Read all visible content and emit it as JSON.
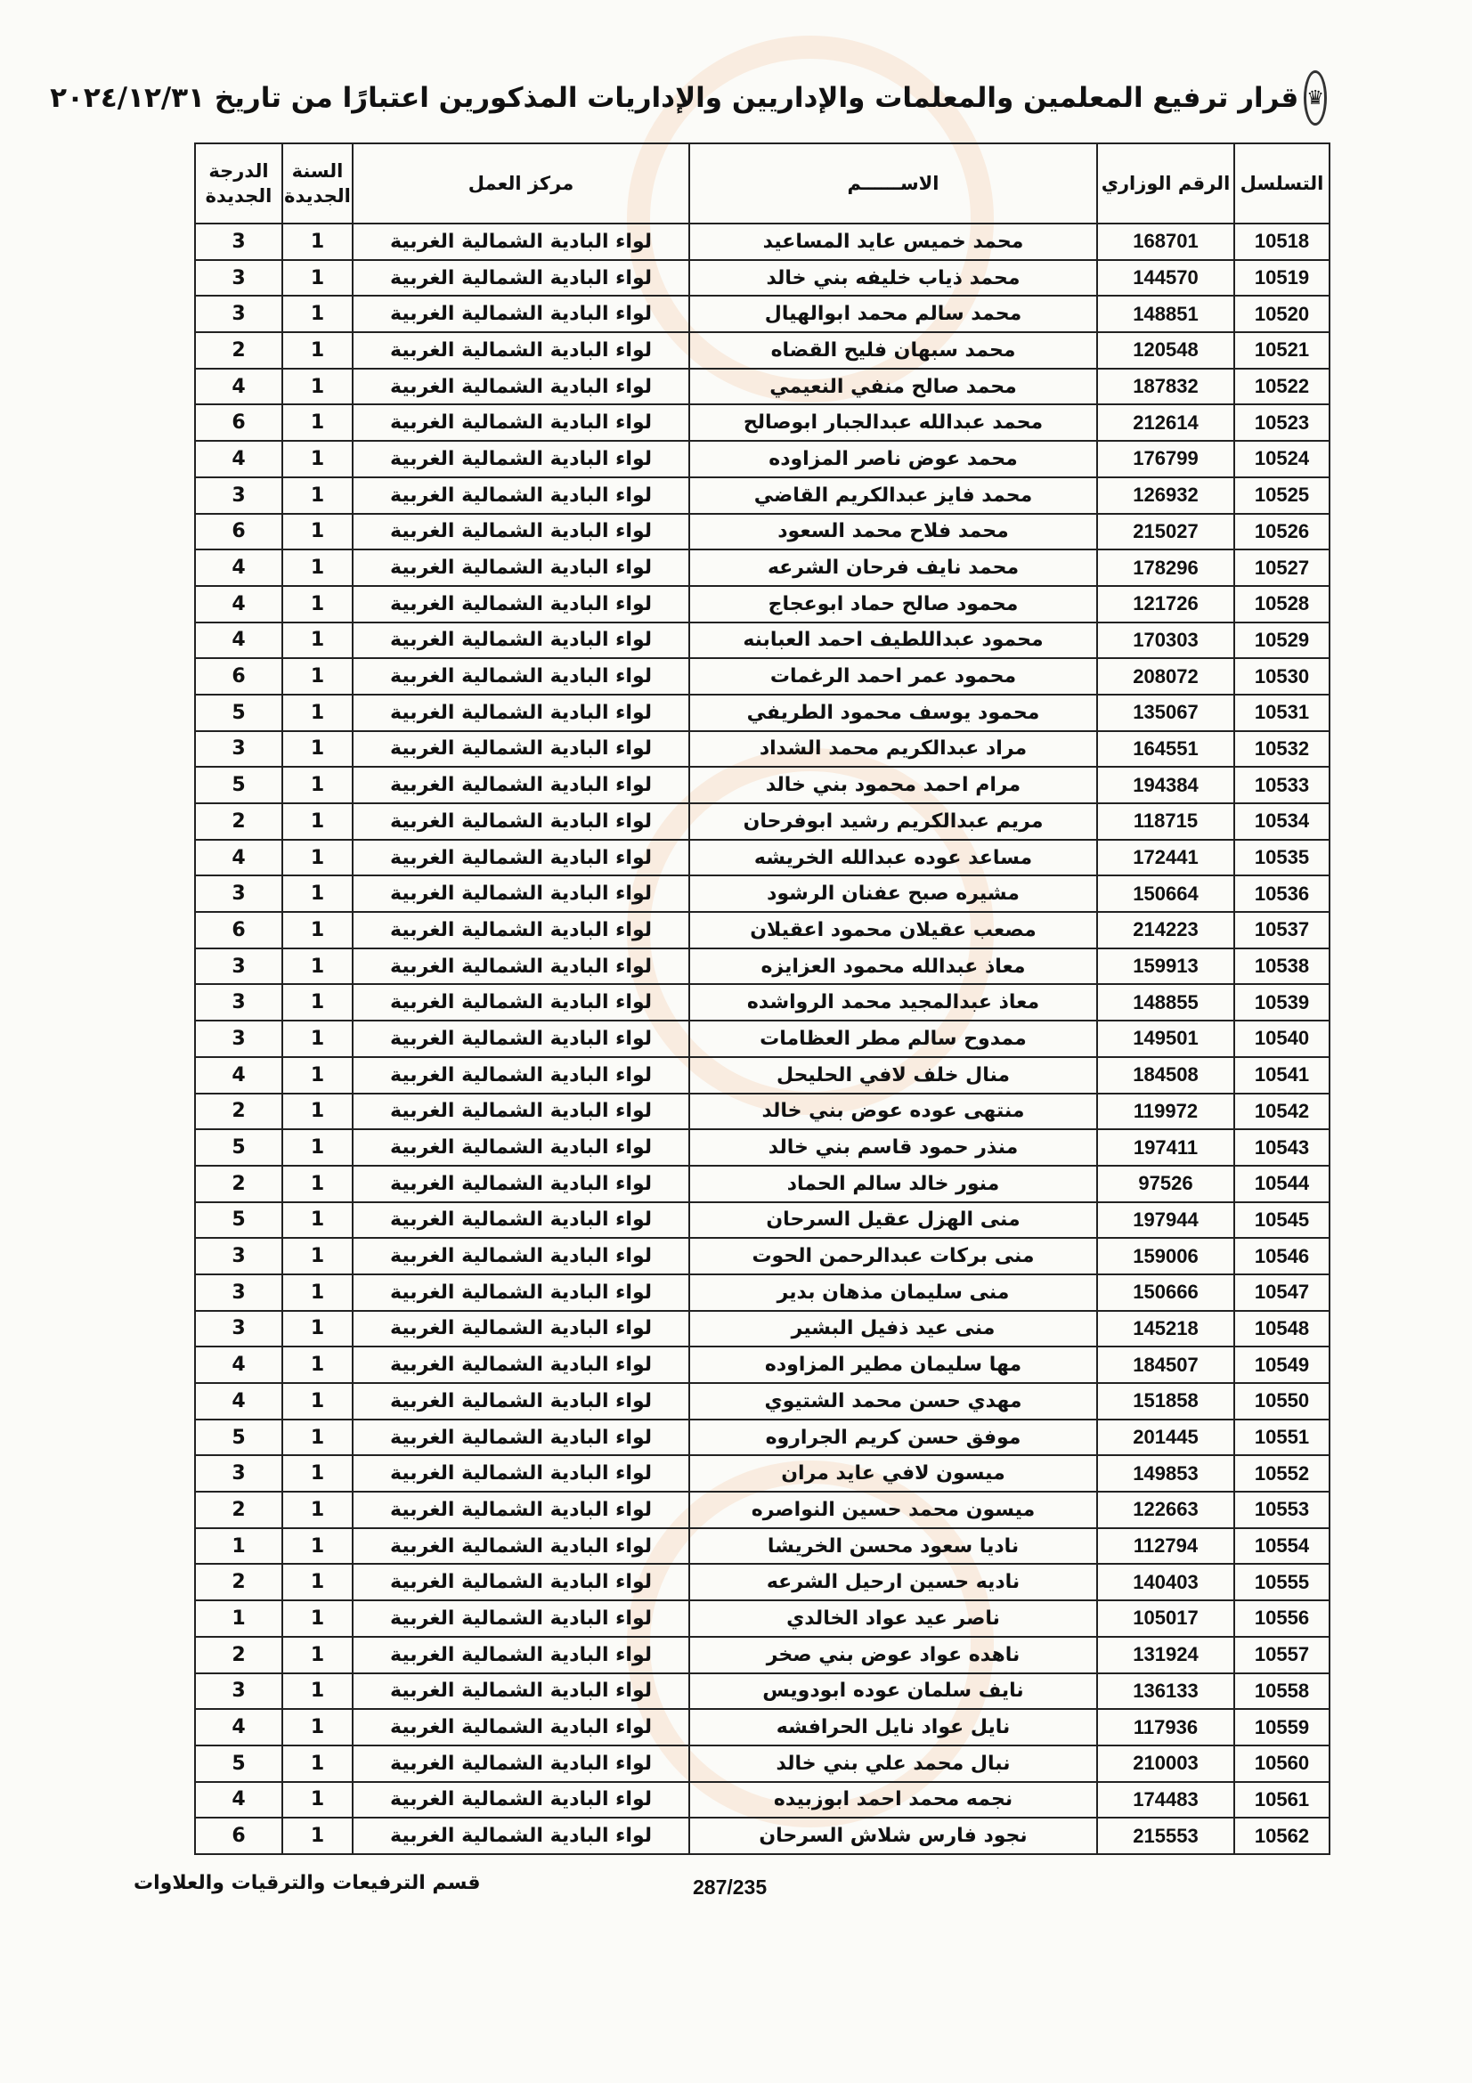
{
  "watermark": "مدار الساعة الإخبارية",
  "header": {
    "seal_icon": "jordan-ministry-seal",
    "title": "قرار ترفيع المعلمين والمعلمات والإداريين والإداريات المذكورين اعتبارًا من تاريخ ٢٠٢٤/١٢/٣١"
  },
  "table": {
    "columns": [
      "التسلسل",
      "الرقم الوزاري",
      "الاســــــم",
      "مركز العمل",
      "السنة الجديدة",
      "الدرجة الجديدة"
    ],
    "rows": [
      [
        "10518",
        "168701",
        "محمد خميس عايد المساعيد",
        "لواء البادية الشمالية الغربية",
        "1",
        "3"
      ],
      [
        "10519",
        "144570",
        "محمد ذياب خليفه بني خالد",
        "لواء البادية الشمالية الغربية",
        "1",
        "3"
      ],
      [
        "10520",
        "148851",
        "محمد سالم محمد ابوالهيال",
        "لواء البادية الشمالية الغربية",
        "1",
        "3"
      ],
      [
        "10521",
        "120548",
        "محمد سبهان فليح القضاه",
        "لواء البادية الشمالية الغربية",
        "1",
        "2"
      ],
      [
        "10522",
        "187832",
        "محمد صالح منفي النعيمي",
        "لواء البادية الشمالية الغربية",
        "1",
        "4"
      ],
      [
        "10523",
        "212614",
        "محمد عبدالله عبدالجبار ابوصالح",
        "لواء البادية الشمالية الغربية",
        "1",
        "6"
      ],
      [
        "10524",
        "176799",
        "محمد عوض ناصر المزاوده",
        "لواء البادية الشمالية الغربية",
        "1",
        "4"
      ],
      [
        "10525",
        "126932",
        "محمد فايز عبدالكريم القاضي",
        "لواء البادية الشمالية الغربية",
        "1",
        "3"
      ],
      [
        "10526",
        "215027",
        "محمد فلاح محمد السعود",
        "لواء البادية الشمالية الغربية",
        "1",
        "6"
      ],
      [
        "10527",
        "178296",
        "محمد نايف فرحان الشرعه",
        "لواء البادية الشمالية الغربية",
        "1",
        "4"
      ],
      [
        "10528",
        "121726",
        "محمود صالح حماد ابوعجاج",
        "لواء البادية الشمالية الغربية",
        "1",
        "4"
      ],
      [
        "10529",
        "170303",
        "محمود عبداللطيف احمد العبابنه",
        "لواء البادية الشمالية الغربية",
        "1",
        "4"
      ],
      [
        "10530",
        "208072",
        "محمود عمر احمد الرغمات",
        "لواء البادية الشمالية الغربية",
        "1",
        "6"
      ],
      [
        "10531",
        "135067",
        "محمود يوسف محمود الطريفي",
        "لواء البادية الشمالية الغربية",
        "1",
        "5"
      ],
      [
        "10532",
        "164551",
        "مراد عبدالكريم محمد الشداد",
        "لواء البادية الشمالية الغربية",
        "1",
        "3"
      ],
      [
        "10533",
        "194384",
        "مرام احمد محمود بني خالد",
        "لواء البادية الشمالية الغربية",
        "1",
        "5"
      ],
      [
        "10534",
        "118715",
        "مريم عبدالكريم رشيد ابوفرحان",
        "لواء البادية الشمالية الغربية",
        "1",
        "2"
      ],
      [
        "10535",
        "172441",
        "مساعد عوده عبدالله الخريشه",
        "لواء البادية الشمالية الغربية",
        "1",
        "4"
      ],
      [
        "10536",
        "150664",
        "مشيره صبح عفنان الرشود",
        "لواء البادية الشمالية الغربية",
        "1",
        "3"
      ],
      [
        "10537",
        "214223",
        "مصعب عقيلان محمود اعقيلان",
        "لواء البادية الشمالية الغربية",
        "1",
        "6"
      ],
      [
        "10538",
        "159913",
        "معاذ عبدالله محمود العزايزه",
        "لواء البادية الشمالية الغربية",
        "1",
        "3"
      ],
      [
        "10539",
        "148855",
        "معاذ عبدالمجيد محمد الرواشده",
        "لواء البادية الشمالية الغربية",
        "1",
        "3"
      ],
      [
        "10540",
        "149501",
        "ممدوح سالم مطر العظامات",
        "لواء البادية الشمالية الغربية",
        "1",
        "3"
      ],
      [
        "10541",
        "184508",
        "منال خلف لافي الحليحل",
        "لواء البادية الشمالية الغربية",
        "1",
        "4"
      ],
      [
        "10542",
        "119972",
        "منتهى عوده عوض بني خالد",
        "لواء البادية الشمالية الغربية",
        "1",
        "2"
      ],
      [
        "10543",
        "197411",
        "منذر حمود قاسم بني خالد",
        "لواء البادية الشمالية الغربية",
        "1",
        "5"
      ],
      [
        "10544",
        "97526",
        "منور خالد سالم الحماد",
        "لواء البادية الشمالية الغربية",
        "1",
        "2"
      ],
      [
        "10545",
        "197944",
        "منى الهزل عقيل السرحان",
        "لواء البادية الشمالية الغربية",
        "1",
        "5"
      ],
      [
        "10546",
        "159006",
        "منى بركات عبدالرحمن الحوت",
        "لواء البادية الشمالية الغربية",
        "1",
        "3"
      ],
      [
        "10547",
        "150666",
        "منى سليمان مذهان بدير",
        "لواء البادية الشمالية الغربية",
        "1",
        "3"
      ],
      [
        "10548",
        "145218",
        "منى عيد ذفيل البشير",
        "لواء البادية الشمالية الغربية",
        "1",
        "3"
      ],
      [
        "10549",
        "184507",
        "مها سليمان مطير المزاوده",
        "لواء البادية الشمالية الغربية",
        "1",
        "4"
      ],
      [
        "10550",
        "151858",
        "مهدي حسن محمد الشتيوي",
        "لواء البادية الشمالية الغربية",
        "1",
        "4"
      ],
      [
        "10551",
        "201445",
        "موفق حسن كريم الجراروه",
        "لواء البادية الشمالية الغربية",
        "1",
        "5"
      ],
      [
        "10552",
        "149853",
        "ميسون لافي عايد مران",
        "لواء البادية الشمالية الغربية",
        "1",
        "3"
      ],
      [
        "10553",
        "122663",
        "ميسون محمد حسين النواصره",
        "لواء البادية الشمالية الغربية",
        "1",
        "2"
      ],
      [
        "10554",
        "112794",
        "ناديا سعود محسن الخريشا",
        "لواء البادية الشمالية الغربية",
        "1",
        "1"
      ],
      [
        "10555",
        "140403",
        "ناديه حسين ارحيل الشرعه",
        "لواء البادية الشمالية الغربية",
        "1",
        "2"
      ],
      [
        "10556",
        "105017",
        "ناصر عيد عواد الخالدي",
        "لواء البادية الشمالية الغربية",
        "1",
        "1"
      ],
      [
        "10557",
        "131924",
        "ناهده عواد عوض بني صخر",
        "لواء البادية الشمالية الغربية",
        "1",
        "2"
      ],
      [
        "10558",
        "136133",
        "نايف سلمان عوده ابودويس",
        "لواء البادية الشمالية الغربية",
        "1",
        "3"
      ],
      [
        "10559",
        "117936",
        "نايل عواد نايل الحرافشه",
        "لواء البادية الشمالية الغربية",
        "1",
        "4"
      ],
      [
        "10560",
        "210003",
        "نبال محمد علي بني خالد",
        "لواء البادية الشمالية الغربية",
        "1",
        "5"
      ],
      [
        "10561",
        "174483",
        "نجمه محمد احمد ابوزبيده",
        "لواء البادية الشمالية الغربية",
        "1",
        "4"
      ],
      [
        "10562",
        "215553",
        "نجود فارس شلاش السرحان",
        "لواء البادية الشمالية الغربية",
        "1",
        "6"
      ]
    ]
  },
  "footer": {
    "department": "قسم الترفيعات والترقيات والعلاوات",
    "page": "287/235"
  }
}
